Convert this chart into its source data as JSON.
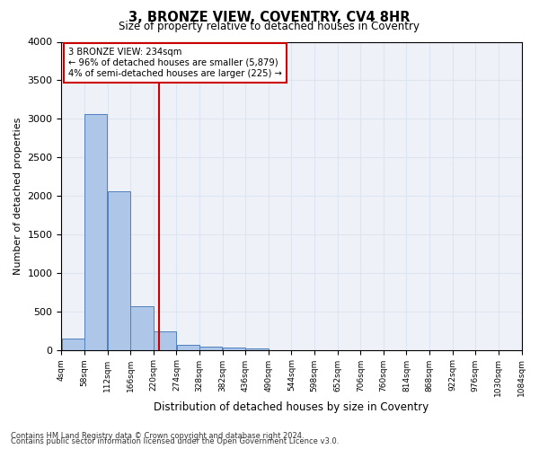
{
  "title": "3, BRONZE VIEW, COVENTRY, CV4 8HR",
  "subtitle": "Size of property relative to detached houses in Coventry",
  "xlabel": "Distribution of detached houses by size in Coventry",
  "ylabel": "Number of detached properties",
  "bin_edges": [
    4,
    58,
    112,
    166,
    220,
    274,
    328,
    382,
    436,
    490,
    544,
    598,
    652,
    706,
    760,
    814,
    868,
    922,
    976,
    1030,
    1084
  ],
  "bar_heights": [
    150,
    3060,
    2060,
    570,
    240,
    70,
    40,
    30,
    15,
    0,
    0,
    0,
    0,
    0,
    0,
    0,
    0,
    0,
    0,
    0
  ],
  "bar_color": "#aec6e8",
  "bar_edge_color": "#4f81bd",
  "grid_color": "#dde6f0",
  "background_color": "#eef2f8",
  "red_line_x": 234,
  "red_line_color": "#cc0000",
  "annotation_lines": [
    "3 BRONZE VIEW: 234sqm",
    "← 96% of detached houses are smaller (5,879)",
    "4% of semi-detached houses are larger (225) →"
  ],
  "annotation_box_color": "#cc0000",
  "ylim": [
    0,
    4000
  ],
  "yticks": [
    0,
    500,
    1000,
    1500,
    2000,
    2500,
    3000,
    3500,
    4000
  ],
  "xtick_labels": [
    "4sqm",
    "58sqm",
    "112sqm",
    "166sqm",
    "220sqm",
    "274sqm",
    "328sqm",
    "382sqm",
    "436sqm",
    "490sqm",
    "544sqm",
    "598sqm",
    "652sqm",
    "706sqm",
    "760sqm",
    "814sqm",
    "868sqm",
    "922sqm",
    "976sqm",
    "1030sqm",
    "1084sqm"
  ],
  "footnote1": "Contains HM Land Registry data © Crown copyright and database right 2024.",
  "footnote2": "Contains public sector information licensed under the Open Government Licence v3.0."
}
